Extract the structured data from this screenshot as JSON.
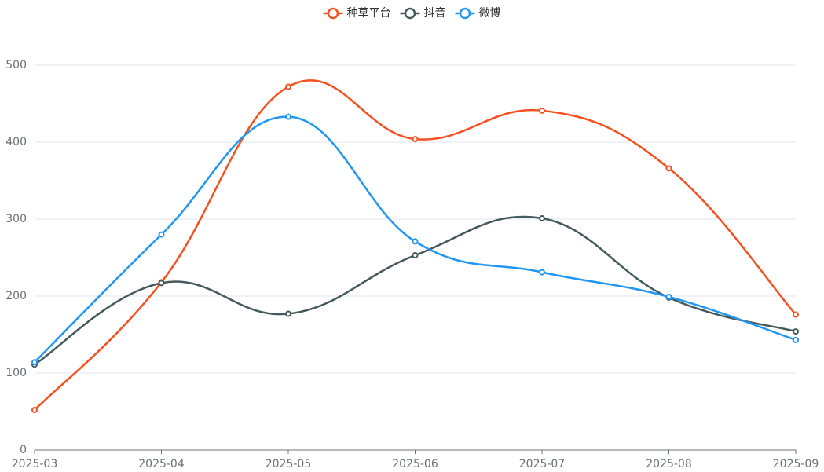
{
  "chart_data": {
    "type": "line",
    "smooth": true,
    "categories": [
      "2025-03",
      "2025-04",
      "2025-05",
      "2025-06",
      "2025-07",
      "2025-08",
      "2025-09"
    ],
    "series": [
      {
        "name": "种草平台",
        "color": "#f4511e",
        "values": [
          52,
          218,
          472,
          404,
          441,
          366,
          176
        ]
      },
      {
        "name": "抖音",
        "color": "#455a5c",
        "values": [
          111,
          217,
          177,
          253,
          301,
          198,
          154
        ]
      },
      {
        "name": "微博",
        "color": "#2196f3",
        "values": [
          114,
          280,
          433,
          271,
          231,
          199,
          143
        ]
      }
    ],
    "ylim": [
      0,
      500
    ],
    "yticks": [
      0,
      100,
      200,
      300,
      400,
      500
    ],
    "grid": true,
    "legend": "top"
  }
}
